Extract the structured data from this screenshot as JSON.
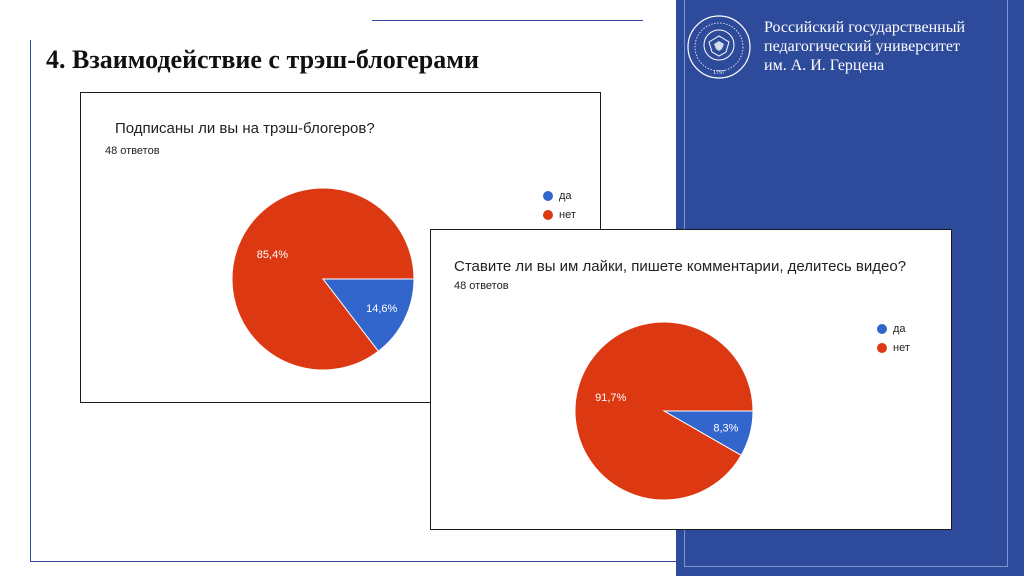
{
  "slide": {
    "title": "4. Взаимодействие с трэш-блогерами"
  },
  "university": {
    "lines": [
      "Российский государственный",
      "педагогический университет",
      "им. А. И. Герцена"
    ],
    "logo_year": "1797"
  },
  "colors": {
    "panel": "#2e4a9a",
    "yes": "#3366cc",
    "no": "#dc3912"
  },
  "chart_data": [
    {
      "type": "pie",
      "title": "Подписаны ли вы на трэш-блогеров?",
      "responses": "48 ответов",
      "legend": [
        "да",
        "нет"
      ],
      "slices": [
        {
          "label": "да",
          "value": 14.6,
          "display": "14,6%"
        },
        {
          "label": "нет",
          "value": 85.4,
          "display": "85,4%"
        }
      ],
      "legend_position": "right"
    },
    {
      "type": "pie",
      "title": "Ставите ли вы им лайки, пишете комментарии, делитесь видео?",
      "responses": "48 ответов",
      "legend": [
        "да",
        "нет"
      ],
      "slices": [
        {
          "label": "да",
          "value": 8.3,
          "display": "8,3%"
        },
        {
          "label": "нет",
          "value": 91.7,
          "display": "91,7%"
        }
      ],
      "legend_position": "right"
    }
  ]
}
